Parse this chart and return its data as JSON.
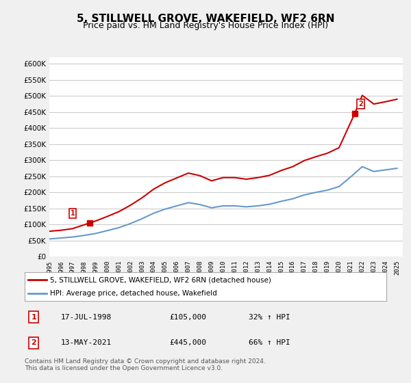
{
  "title": "5, STILLWELL GROVE, WAKEFIELD, WF2 6RN",
  "subtitle": "Price paid vs. HM Land Registry's House Price Index (HPI)",
  "title_fontsize": 11,
  "subtitle_fontsize": 9,
  "bg_color": "#f0f0f0",
  "plot_bg_color": "#ffffff",
  "red_color": "#cc0000",
  "blue_color": "#6699cc",
  "grid_color": "#cccccc",
  "legend_label_red": "5, STILLWELL GROVE, WAKEFIELD, WF2 6RN (detached house)",
  "legend_label_blue": "HPI: Average price, detached house, Wakefield",
  "sale1_date": "17-JUL-1998",
  "sale1_price": 105000,
  "sale1_hpi_pct": "32% ↑ HPI",
  "sale2_date": "13-MAY-2021",
  "sale2_price": 445000,
  "sale2_hpi_pct": "66% ↑ HPI",
  "footnote": "Contains HM Land Registry data © Crown copyright and database right 2024.\nThis data is licensed under the Open Government Licence v3.0.",
  "ylim": [
    0,
    620000
  ],
  "yticks": [
    0,
    50000,
    100000,
    150000,
    200000,
    250000,
    300000,
    350000,
    400000,
    450000,
    500000,
    550000,
    600000
  ],
  "hpi_years": [
    1995,
    1996,
    1997,
    1998,
    1999,
    2000,
    2001,
    2002,
    2003,
    2004,
    2005,
    2006,
    2007,
    2008,
    2009,
    2010,
    2011,
    2012,
    2013,
    2014,
    2015,
    2016,
    2017,
    2018,
    2019,
    2020,
    2021,
    2022,
    2023,
    2024,
    2025
  ],
  "hpi_values": [
    55000,
    58000,
    61000,
    66000,
    72000,
    81000,
    90000,
    103000,
    118000,
    135000,
    148000,
    158000,
    168000,
    162000,
    152000,
    158000,
    158000,
    155000,
    158000,
    163000,
    172000,
    180000,
    192000,
    200000,
    207000,
    218000,
    248000,
    280000,
    265000,
    270000,
    275000
  ],
  "red_years_seg1": [
    1995.0,
    1996.0,
    1997.0,
    1998.5
  ],
  "red_values_seg1": [
    79000,
    82000,
    87000,
    105000
  ],
  "red_years_seg2": [
    1998.5,
    1999,
    2000,
    2001,
    2002,
    2003,
    2004,
    2005,
    2006,
    2007,
    2008,
    2009,
    2010,
    2011,
    2012,
    2013,
    2014,
    2015,
    2016,
    2017,
    2018,
    2019,
    2020,
    2021.35
  ],
  "red_values_seg2": [
    105000,
    111000,
    125000,
    140000,
    160000,
    183000,
    210000,
    230000,
    245000,
    260000,
    252000,
    236000,
    246000,
    246000,
    241000,
    246000,
    253000,
    268000,
    280000,
    299000,
    311000,
    322000,
    339000,
    445000
  ],
  "red_years_seg3": [
    2021.35,
    2022,
    2023,
    2024,
    2025
  ],
  "red_values_seg3": [
    445000,
    502000,
    475000,
    482000,
    490000
  ],
  "sale1_x": 1998.5,
  "sale1_y": 105000,
  "sale2_x": 2021.35,
  "sale2_y": 445000,
  "xmin": 1995,
  "xmax": 2025.5
}
